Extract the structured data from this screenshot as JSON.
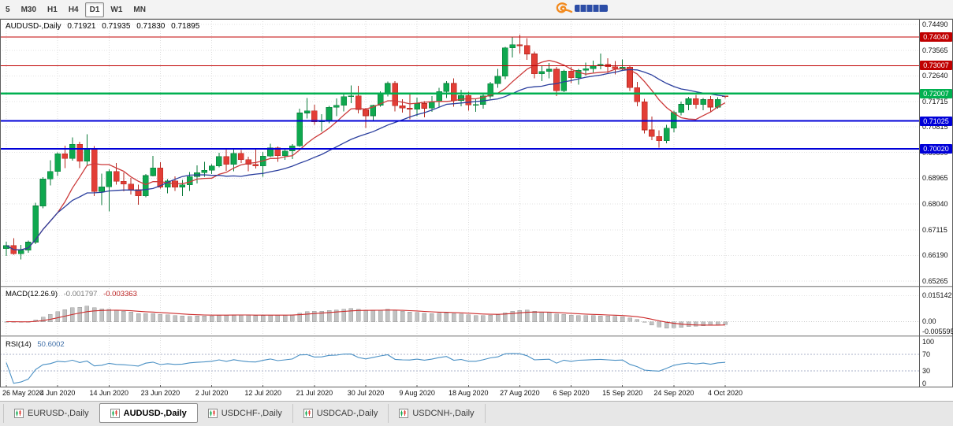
{
  "toolbar": {
    "periods": [
      {
        "label": "5",
        "active": false
      },
      {
        "label": "M30",
        "active": false
      },
      {
        "label": "H1",
        "active": false
      },
      {
        "label": "H4",
        "active": false
      },
      {
        "label": "D1",
        "active": true
      },
      {
        "label": "W1",
        "active": false
      },
      {
        "label": "MN",
        "active": false
      }
    ]
  },
  "quote": {
    "symbol": "AUDUSD-,Daily",
    "open": "0.71921",
    "high": "0.71935",
    "low": "0.71830",
    "close": "0.71895"
  },
  "chart_data": {
    "type": "candlestick",
    "symbol": "AUDUSD",
    "timeframe": "Daily",
    "price_axis": {
      "min": 0.651,
      "max": 0.7469,
      "gridlines": [
        {
          "label": "0.74490",
          "value": 0.7449
        },
        {
          "label": "0.73565",
          "value": 0.73565
        },
        {
          "label": "0.72640",
          "value": 0.7264
        },
        {
          "label": "0.71715",
          "value": 0.71715
        },
        {
          "label": "0.70815",
          "value": 0.70815
        },
        {
          "label": "0.69890",
          "value": 0.6989
        },
        {
          "label": "0.68965",
          "value": 0.68965
        },
        {
          "label": "0.68040",
          "value": 0.6804
        },
        {
          "label": "0.67115",
          "value": 0.67115
        },
        {
          "label": "0.66190",
          "value": 0.6619
        },
        {
          "label": "0.65265",
          "value": 0.65265
        }
      ]
    },
    "hlines": [
      {
        "label": "0.74040",
        "value": 0.7404,
        "color": "#c00000",
        "width": 1.2
      },
      {
        "label": "0.73007",
        "value": 0.73007,
        "color": "#c00000",
        "width": 1.2
      },
      {
        "label": "0.72007",
        "value": 0.72007,
        "color": "#00b050",
        "width": 2.2
      },
      {
        "label": "0.71025",
        "value": 0.71025,
        "color": "#0000d8",
        "width": 2
      },
      {
        "label": "0.70020",
        "value": 0.7002,
        "color": "#0000d8",
        "width": 2
      }
    ],
    "overlays": [
      {
        "name": "fast-ma",
        "type": "sma",
        "period": 8,
        "color": "#cc3b3b"
      },
      {
        "name": "slow-ma",
        "type": "sma",
        "period": 21,
        "color": "#2b3f9e"
      }
    ],
    "colors": {
      "bull_fill": "#0fa84f",
      "bull_stroke": "#0a7a39",
      "bear_fill": "#e23e36",
      "bear_stroke": "#b5271f"
    },
    "ticks": [
      {
        "index": 0,
        "label": "26 May 2020"
      },
      {
        "index": 7,
        "label": "4 Jun 2020"
      },
      {
        "index": 14,
        "label": "14 Jun 2020"
      },
      {
        "index": 21,
        "label": "23 Jun 2020"
      },
      {
        "index": 28,
        "label": "2 Jul 2020"
      },
      {
        "index": 35,
        "label": "12 Jul 2020"
      },
      {
        "index": 42,
        "label": "21 Jul 2020"
      },
      {
        "index": 49,
        "label": "30 Jul 2020"
      },
      {
        "index": 56,
        "label": "9 Aug 2020"
      },
      {
        "index": 63,
        "label": "18 Aug 2020"
      },
      {
        "index": 70,
        "label": "27 Aug 2020"
      },
      {
        "index": 77,
        "label": "6 Sep 2020"
      },
      {
        "index": 84,
        "label": "15 Sep 2020"
      },
      {
        "index": 91,
        "label": "24 Sep 2020"
      },
      {
        "index": 98,
        "label": "4 Oct 2020"
      }
    ],
    "candles": [
      [
        0.6643,
        0.6668,
        0.6617,
        0.6655
      ],
      [
        0.6655,
        0.6681,
        0.6622,
        0.6625
      ],
      [
        0.6625,
        0.6657,
        0.6605,
        0.6638
      ],
      [
        0.6638,
        0.6673,
        0.6629,
        0.6667
      ],
      [
        0.6667,
        0.6808,
        0.666,
        0.6797
      ],
      [
        0.6797,
        0.69,
        0.6788,
        0.6894
      ],
      [
        0.6894,
        0.6961,
        0.6871,
        0.6921
      ],
      [
        0.6921,
        0.6989,
        0.6905,
        0.6985
      ],
      [
        0.6985,
        0.7014,
        0.6933,
        0.6968
      ],
      [
        0.6968,
        0.7043,
        0.696,
        0.7018
      ],
      [
        0.7018,
        0.7028,
        0.6933,
        0.6958
      ],
      [
        0.6958,
        0.7054,
        0.6942,
        0.7
      ],
      [
        0.7,
        0.7012,
        0.6833,
        0.6849
      ],
      [
        0.6849,
        0.6913,
        0.68,
        0.6866
      ],
      [
        0.6866,
        0.6928,
        0.6777,
        0.6921
      ],
      [
        0.6921,
        0.6952,
        0.6874,
        0.6885
      ],
      [
        0.6885,
        0.6918,
        0.6849,
        0.6876
      ],
      [
        0.6876,
        0.6898,
        0.6838,
        0.6855
      ],
      [
        0.6855,
        0.6873,
        0.6801,
        0.6833
      ],
      [
        0.6833,
        0.6911,
        0.6828,
        0.6906
      ],
      [
        0.6906,
        0.6977,
        0.6903,
        0.6934
      ],
      [
        0.6934,
        0.6954,
        0.6859,
        0.6864
      ],
      [
        0.6864,
        0.6894,
        0.6843,
        0.6887
      ],
      [
        0.6887,
        0.6903,
        0.6851,
        0.6864
      ],
      [
        0.6864,
        0.6891,
        0.6833,
        0.6873
      ],
      [
        0.6873,
        0.6919,
        0.6851,
        0.6903
      ],
      [
        0.6903,
        0.6943,
        0.6878,
        0.6917
      ],
      [
        0.6917,
        0.6956,
        0.6902,
        0.6925
      ],
      [
        0.6925,
        0.6947,
        0.6911,
        0.6941
      ],
      [
        0.6941,
        0.6988,
        0.6936,
        0.6975
      ],
      [
        0.6975,
        0.6999,
        0.6923,
        0.6946
      ],
      [
        0.6946,
        0.7,
        0.6921,
        0.6986
      ],
      [
        0.6986,
        0.6998,
        0.6952,
        0.6963
      ],
      [
        0.6963,
        0.6974,
        0.6921,
        0.6946
      ],
      [
        0.6946,
        0.7001,
        0.6932,
        0.6941
      ],
      [
        0.6941,
        0.6991,
        0.6902,
        0.6976
      ],
      [
        0.6976,
        0.7021,
        0.6973,
        0.7006
      ],
      [
        0.7006,
        0.7011,
        0.6956,
        0.6978
      ],
      [
        0.6978,
        0.7005,
        0.6962,
        0.6995
      ],
      [
        0.6995,
        0.7019,
        0.6966,
        0.7013
      ],
      [
        0.7013,
        0.7147,
        0.7009,
        0.7131
      ],
      [
        0.7131,
        0.7184,
        0.7111,
        0.7139
      ],
      [
        0.7139,
        0.7161,
        0.7089,
        0.71
      ],
      [
        0.71,
        0.7127,
        0.7064,
        0.7105
      ],
      [
        0.7105,
        0.7157,
        0.7094,
        0.7151
      ],
      [
        0.7151,
        0.7183,
        0.7119,
        0.7158
      ],
      [
        0.7158,
        0.72,
        0.7137,
        0.719
      ],
      [
        0.719,
        0.723,
        0.7167,
        0.7193
      ],
      [
        0.7193,
        0.7228,
        0.7129,
        0.7143
      ],
      [
        0.7143,
        0.715,
        0.7077,
        0.7121
      ],
      [
        0.7121,
        0.7161,
        0.7103,
        0.7158
      ],
      [
        0.7158,
        0.7209,
        0.7154,
        0.7199
      ],
      [
        0.7199,
        0.7244,
        0.7191,
        0.7237
      ],
      [
        0.7237,
        0.7245,
        0.7137,
        0.7157
      ],
      [
        0.7157,
        0.718,
        0.7133,
        0.7149
      ],
      [
        0.7149,
        0.7199,
        0.7109,
        0.7145
      ],
      [
        0.7145,
        0.7186,
        0.712,
        0.7165
      ],
      [
        0.7165,
        0.7174,
        0.7116,
        0.7148
      ],
      [
        0.7148,
        0.7192,
        0.7135,
        0.7171
      ],
      [
        0.7171,
        0.7222,
        0.7152,
        0.7208
      ],
      [
        0.7208,
        0.7246,
        0.7185,
        0.7237
      ],
      [
        0.7237,
        0.7256,
        0.7154,
        0.7175
      ],
      [
        0.7175,
        0.7215,
        0.7155,
        0.7194
      ],
      [
        0.7194,
        0.7207,
        0.714,
        0.716
      ],
      [
        0.716,
        0.718,
        0.7135,
        0.7161
      ],
      [
        0.7161,
        0.72,
        0.7146,
        0.7192
      ],
      [
        0.7192,
        0.7242,
        0.7182,
        0.7236
      ],
      [
        0.7236,
        0.729,
        0.7222,
        0.7263
      ],
      [
        0.7263,
        0.7368,
        0.7253,
        0.7365
      ],
      [
        0.7365,
        0.7403,
        0.733,
        0.7376
      ],
      [
        0.7376,
        0.7413,
        0.7345,
        0.7373
      ],
      [
        0.7373,
        0.7399,
        0.7322,
        0.7343
      ],
      [
        0.7343,
        0.7352,
        0.7256,
        0.7272
      ],
      [
        0.7272,
        0.7302,
        0.7246,
        0.728
      ],
      [
        0.728,
        0.731,
        0.7255,
        0.7288
      ],
      [
        0.7288,
        0.7296,
        0.7192,
        0.7211
      ],
      [
        0.7211,
        0.7287,
        0.7206,
        0.7282
      ],
      [
        0.7282,
        0.7296,
        0.7238,
        0.7257
      ],
      [
        0.7257,
        0.7289,
        0.7233,
        0.7284
      ],
      [
        0.7284,
        0.7312,
        0.7265,
        0.729
      ],
      [
        0.729,
        0.7319,
        0.7277,
        0.73
      ],
      [
        0.73,
        0.7345,
        0.7288,
        0.7305
      ],
      [
        0.7305,
        0.7327,
        0.7275,
        0.7297
      ],
      [
        0.7297,
        0.7318,
        0.727,
        0.729
      ],
      [
        0.729,
        0.7324,
        0.7284,
        0.7296
      ],
      [
        0.7296,
        0.7302,
        0.721,
        0.7222
      ],
      [
        0.7222,
        0.7243,
        0.7155,
        0.7171
      ],
      [
        0.7171,
        0.7182,
        0.7058,
        0.707
      ],
      [
        0.707,
        0.7118,
        0.7033,
        0.7047
      ],
      [
        0.7047,
        0.7069,
        0.7006,
        0.7031
      ],
      [
        0.7031,
        0.7089,
        0.7022,
        0.7076
      ],
      [
        0.7076,
        0.7139,
        0.7061,
        0.7133
      ],
      [
        0.7133,
        0.7172,
        0.7122,
        0.7162
      ],
      [
        0.7162,
        0.7189,
        0.7141,
        0.7183
      ],
      [
        0.7183,
        0.7196,
        0.7146,
        0.7161
      ],
      [
        0.7161,
        0.7185,
        0.7141,
        0.7179
      ],
      [
        0.7179,
        0.7192,
        0.7134,
        0.7152
      ],
      [
        0.7152,
        0.7187,
        0.7147,
        0.718
      ],
      [
        0.71921,
        0.71935,
        0.7183,
        0.71895
      ]
    ]
  },
  "macd": {
    "title": "MACD(12.26.9)",
    "main_value": "-0.001797",
    "signal_value": "-0.003363",
    "params": {
      "fast": 12,
      "slow": 26,
      "signal": 9
    },
    "axis": [
      {
        "label": "0.015142",
        "value": 0.015142
      },
      {
        "label": "0.00",
        "value": 0
      },
      {
        "label": "-0.005595",
        "value": -0.005595
      }
    ],
    "range": {
      "min": -0.008,
      "max": 0.0194
    },
    "colors": {
      "histogram": "#c2c2c2",
      "histogram_edge": "#9b9b9b",
      "signal": "#cc2a2a"
    }
  },
  "rsi": {
    "title": "RSI(14)",
    "value": "50.6002",
    "period": 14,
    "levels": [
      70,
      30
    ],
    "axis": [
      {
        "label": "100",
        "value": 100
      },
      {
        "label": "70",
        "value": 70
      },
      {
        "label": "30",
        "value": 30
      },
      {
        "label": "0",
        "value": 0
      }
    ],
    "range": {
      "min": -10,
      "max": 110
    },
    "color": "#4a90c4"
  },
  "tabs": [
    {
      "label": "EURUSD-,Daily",
      "active": false
    },
    {
      "label": "AUDUSD-,Daily",
      "active": true
    },
    {
      "label": "USDCHF-,Daily",
      "active": false
    },
    {
      "label": "USDCAD-,Daily",
      "active": false
    },
    {
      "label": "USDCNH-,Daily",
      "active": false
    }
  ]
}
